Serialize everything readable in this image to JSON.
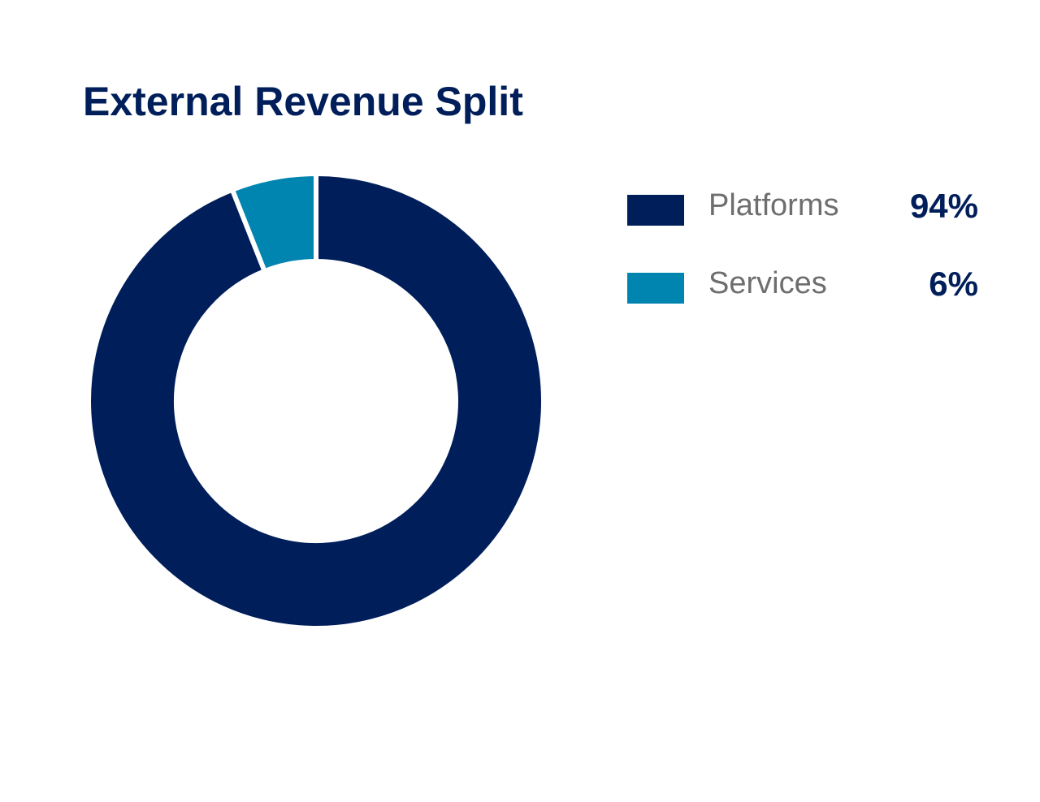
{
  "chart_data": {
    "type": "pie",
    "variant": "donut",
    "title": "External Revenue Split",
    "categories": [
      "Platforms",
      "Services"
    ],
    "values": [
      94,
      6
    ],
    "value_labels": [
      "94%",
      "6%"
    ],
    "colors": [
      "#001E5A",
      "#0085B0"
    ],
    "legend_position": "right"
  }
}
